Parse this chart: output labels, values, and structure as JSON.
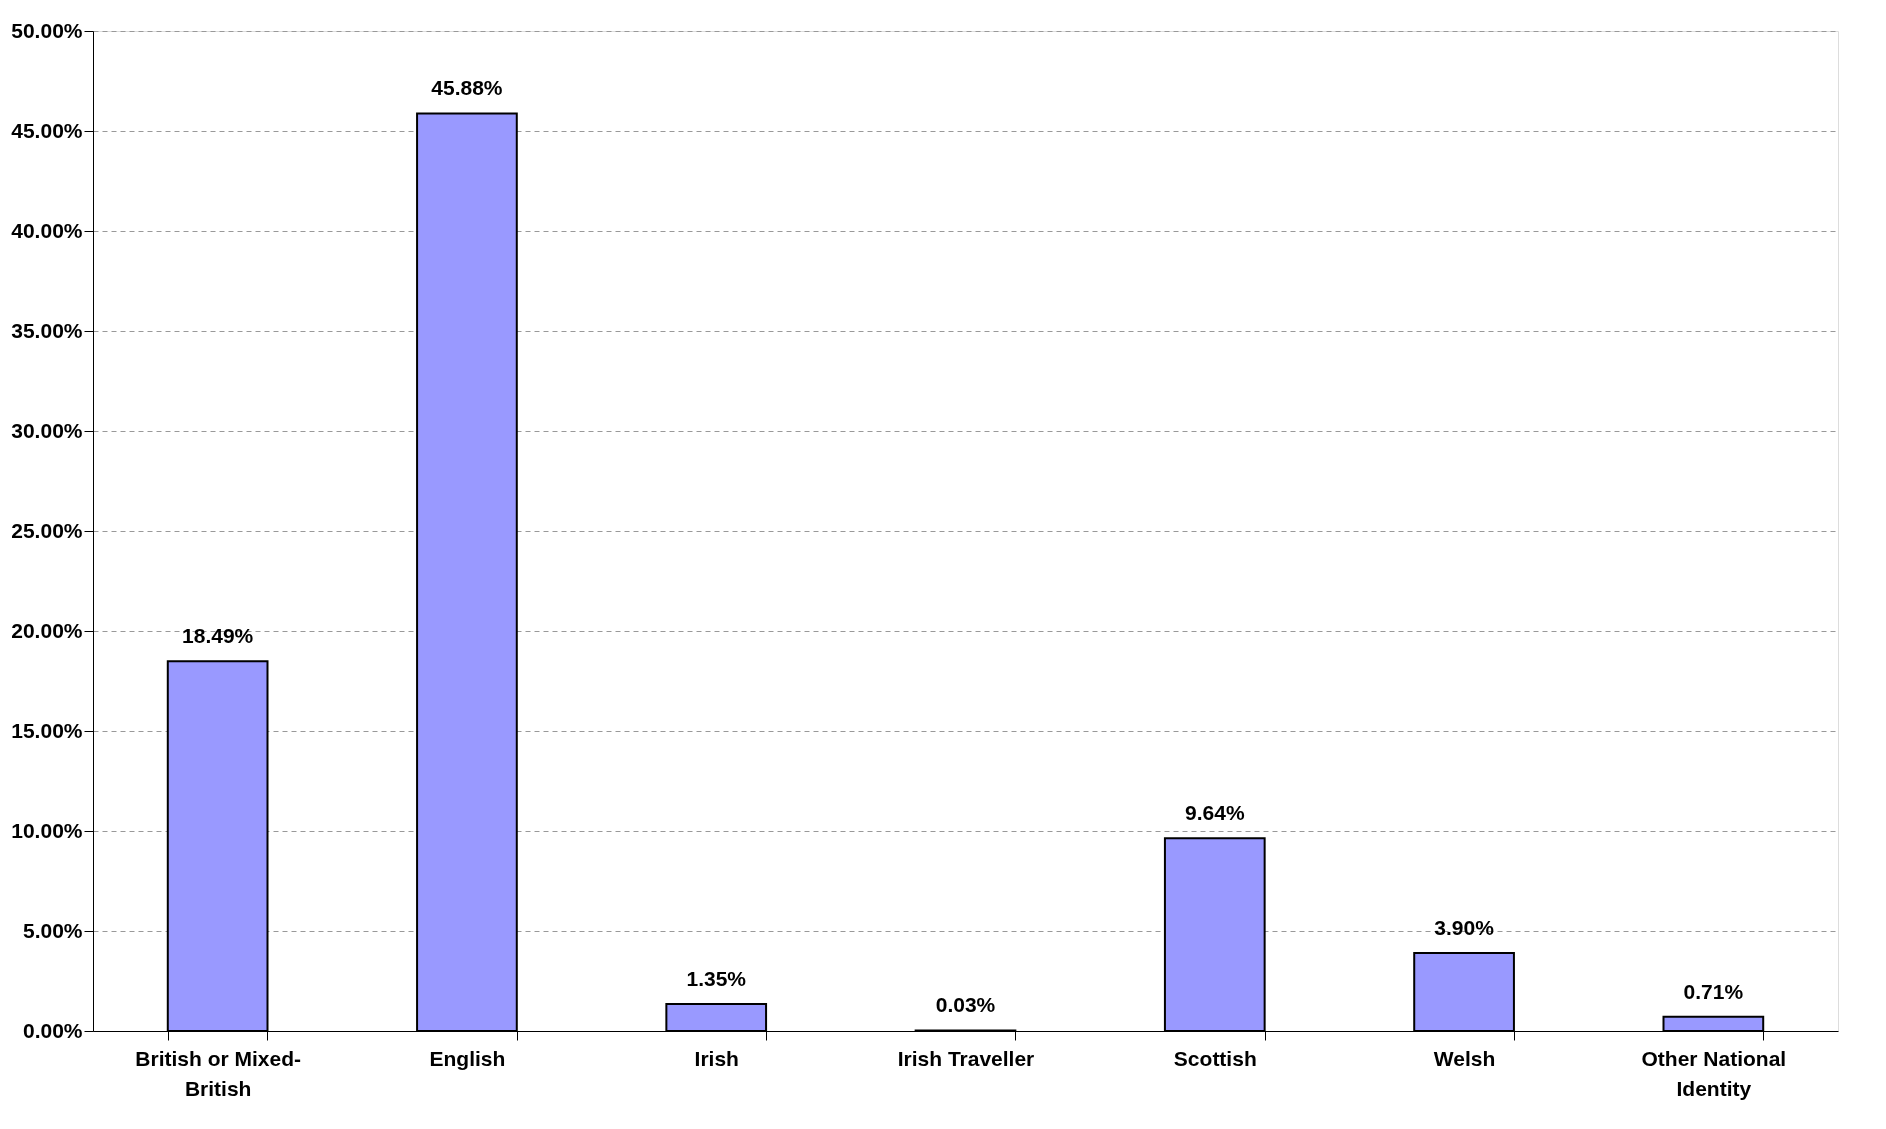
{
  "chart_data": {
    "type": "bar",
    "categories": [
      "British or Mixed-British",
      "English",
      "Irish",
      "Irish Traveller",
      "Scottish",
      "Welsh",
      "Other National Identity"
    ],
    "values": [
      18.49,
      45.88,
      1.35,
      0.03,
      9.64,
      3.9,
      0.71
    ],
    "value_labels": [
      "18.49%",
      "45.88%",
      "1.35%",
      "0.03%",
      "9.64%",
      "3.90%",
      "0.71%"
    ],
    "color": "#9999ff",
    "ylim": [
      0,
      50
    ],
    "yticks": [
      {
        "value": 0,
        "label": "0.00%"
      },
      {
        "value": 5,
        "label": "5.00%"
      },
      {
        "value": 10,
        "label": "10.00%"
      },
      {
        "value": 15,
        "label": "15.00%"
      },
      {
        "value": 20,
        "label": "20.00%"
      },
      {
        "value": 25,
        "label": "25.00%"
      },
      {
        "value": 30,
        "label": "30.00%"
      },
      {
        "value": 35,
        "label": "35.00%"
      },
      {
        "value": 40,
        "label": "40.00%"
      },
      {
        "value": 45,
        "label": "45.00%"
      },
      {
        "value": 50,
        "label": "50.00%"
      }
    ],
    "grid": "y"
  }
}
